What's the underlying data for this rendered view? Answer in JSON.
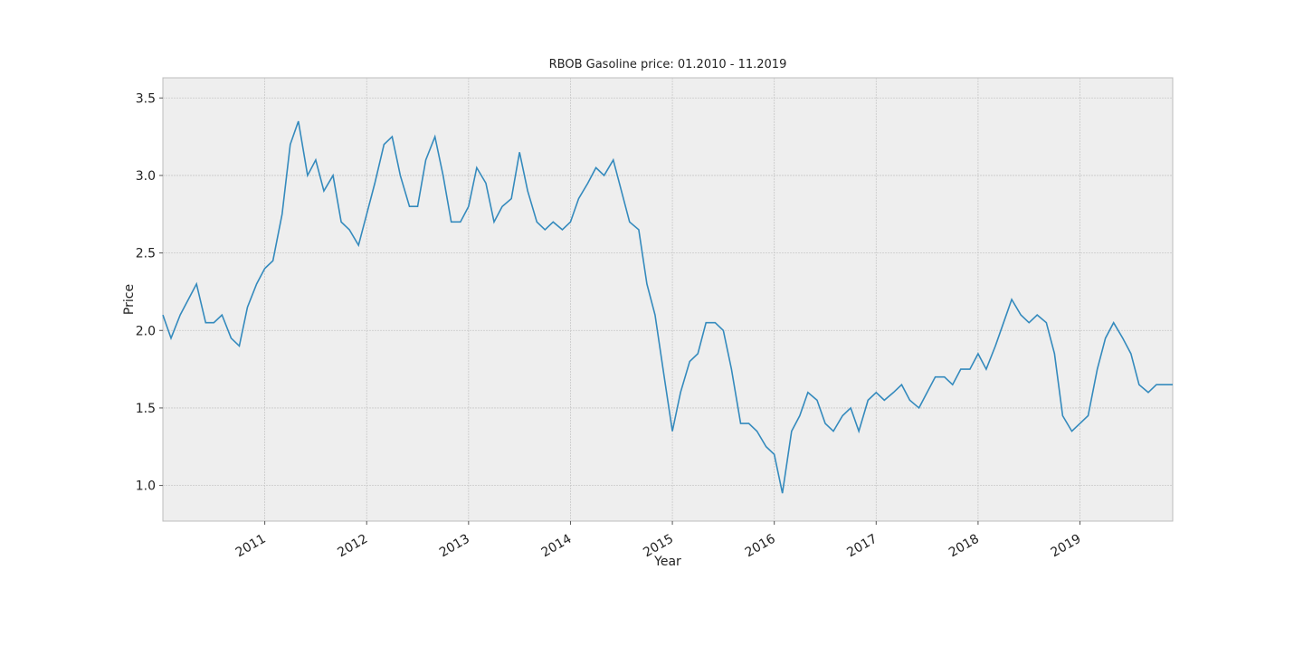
{
  "chart_data": {
    "type": "line",
    "title": "RBOB Gasoline price: 01.2010 - 11.2019",
    "xlabel": "Year",
    "ylabel": "Price",
    "x": [
      2010.0,
      2010.08,
      2010.17,
      2010.25,
      2010.33,
      2010.42,
      2010.5,
      2010.58,
      2010.67,
      2010.75,
      2010.83,
      2010.92,
      2011.0,
      2011.08,
      2011.17,
      2011.25,
      2011.33,
      2011.42,
      2011.5,
      2011.58,
      2011.67,
      2011.75,
      2011.83,
      2011.92,
      2012.0,
      2012.08,
      2012.17,
      2012.25,
      2012.33,
      2012.42,
      2012.5,
      2012.58,
      2012.67,
      2012.75,
      2012.83,
      2012.92,
      2013.0,
      2013.08,
      2013.17,
      2013.25,
      2013.33,
      2013.42,
      2013.5,
      2013.58,
      2013.67,
      2013.75,
      2013.83,
      2013.92,
      2014.0,
      2014.08,
      2014.17,
      2014.25,
      2014.33,
      2014.42,
      2014.5,
      2014.58,
      2014.67,
      2014.75,
      2014.83,
      2014.92,
      2015.0,
      2015.08,
      2015.17,
      2015.25,
      2015.33,
      2015.42,
      2015.5,
      2015.58,
      2015.67,
      2015.75,
      2015.83,
      2015.92,
      2016.0,
      2016.08,
      2016.17,
      2016.25,
      2016.33,
      2016.42,
      2016.5,
      2016.58,
      2016.67,
      2016.75,
      2016.83,
      2016.92,
      2017.0,
      2017.08,
      2017.17,
      2017.25,
      2017.33,
      2017.42,
      2017.5,
      2017.58,
      2017.67,
      2017.75,
      2017.83,
      2017.92,
      2018.0,
      2018.08,
      2018.17,
      2018.25,
      2018.33,
      2018.42,
      2018.5,
      2018.58,
      2018.67,
      2018.75,
      2018.83,
      2018.92,
      2019.0,
      2019.08,
      2019.17,
      2019.25,
      2019.33,
      2019.42,
      2019.5,
      2019.58,
      2019.67,
      2019.75,
      2019.83,
      2019.91
    ],
    "series": [
      {
        "color": "#348abd",
        "values": [
          2.1,
          1.95,
          2.1,
          2.2,
          2.3,
          2.05,
          2.05,
          2.1,
          1.95,
          1.9,
          2.15,
          2.3,
          2.4,
          2.45,
          2.75,
          3.2,
          3.35,
          3.0,
          3.1,
          2.9,
          3.0,
          2.7,
          2.65,
          2.55,
          2.75,
          2.95,
          3.2,
          3.25,
          3.0,
          2.8,
          2.8,
          3.1,
          3.25,
          3.0,
          2.7,
          2.7,
          2.8,
          3.05,
          2.95,
          2.7,
          2.8,
          2.85,
          3.15,
          2.9,
          2.7,
          2.65,
          2.7,
          2.65,
          2.7,
          2.85,
          2.95,
          3.05,
          3.0,
          3.1,
          2.9,
          2.7,
          2.65,
          2.3,
          2.1,
          1.7,
          1.35,
          1.6,
          1.8,
          1.85,
          2.05,
          2.05,
          2.0,
          1.75,
          1.4,
          1.4,
          1.35,
          1.25,
          1.2,
          0.95,
          1.35,
          1.45,
          1.6,
          1.55,
          1.4,
          1.35,
          1.45,
          1.5,
          1.35,
          1.55,
          1.6,
          1.55,
          1.6,
          1.65,
          1.55,
          1.5,
          1.6,
          1.7,
          1.7,
          1.65,
          1.75,
          1.75,
          1.85,
          1.75,
          1.9,
          2.05,
          2.2,
          2.1,
          2.05,
          2.1,
          2.05,
          1.85,
          1.45,
          1.35,
          1.4,
          1.45,
          1.75,
          1.95,
          2.05,
          1.95,
          1.85,
          1.65,
          1.6,
          1.65,
          1.65,
          1.65
        ]
      }
    ],
    "xlim": [
      2010.0,
      2019.91
    ],
    "xticks": [
      2011,
      2012,
      2013,
      2014,
      2015,
      2016,
      2017,
      2018,
      2019
    ],
    "ylim": [
      0.77,
      3.63
    ],
    "yticks": [
      {
        "value": 1,
        "label": "1.0"
      },
      1.5,
      {
        "value": 2,
        "label": "2.0"
      },
      2.5,
      {
        "value": 3,
        "label": "3.0"
      },
      3.5
    ],
    "grid": true
  }
}
